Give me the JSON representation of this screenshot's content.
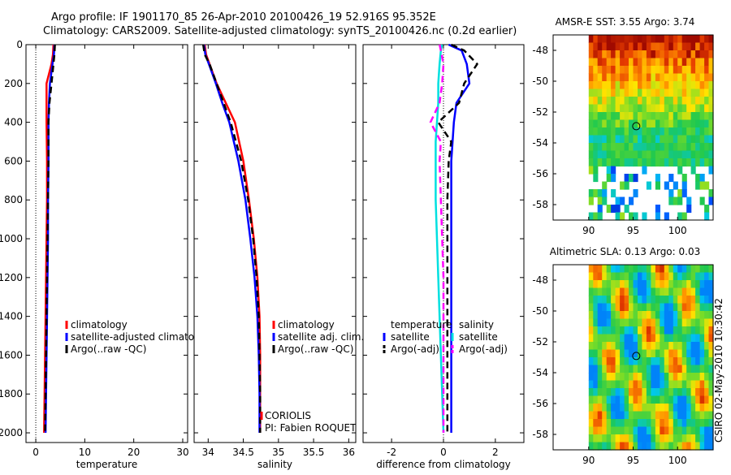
{
  "figure": {
    "title_line1": "Argo profile: IF 1901170_85 26-Apr-2010 20100426_19 52.916S 95.352E",
    "title_line2": "Climatology: CARS2009. Satellite-adjusted climatology: synTS_20100426.nc (0.2d earlier)",
    "side_stamp": "CSIRO 02-May-2010 10:30:42"
  },
  "chart_data": [
    {
      "type": "line",
      "title": "",
      "xlabel": "temperature",
      "ylabel": "",
      "xlim": [
        -2,
        31
      ],
      "ylim": [
        2050,
        0
      ],
      "xticks": [
        0,
        10,
        20,
        30
      ],
      "yticks": [
        0,
        200,
        400,
        600,
        800,
        1000,
        1200,
        1400,
        1600,
        1800,
        2000
      ],
      "legend": [
        "climatology",
        "satellite-adjusted climatology",
        "Argo(..raw -QC)"
      ],
      "series": [
        {
          "name": "climatology",
          "color": "#ff0000",
          "dash": "solid",
          "x": [
            3.6,
            3.5,
            3.2,
            2.2,
            2.2,
            2.2,
            2.3,
            2.3,
            2.2,
            2.1,
            2.0,
            1.9,
            1.8,
            1.7
          ],
          "y": [
            0,
            50,
            100,
            200,
            300,
            400,
            600,
            800,
            1000,
            1200,
            1400,
            1600,
            1800,
            2000
          ]
        },
        {
          "name": "satellite-adjusted climatology",
          "color": "#0000ff",
          "dash": "solid",
          "x": [
            3.8,
            3.7,
            3.4,
            2.9,
            2.7,
            2.6,
            2.6,
            2.5,
            2.5,
            2.4,
            2.3,
            2.2,
            2.1,
            2.0
          ],
          "y": [
            0,
            50,
            100,
            200,
            300,
            400,
            600,
            800,
            1000,
            1200,
            1400,
            1600,
            1800,
            2000
          ]
        },
        {
          "name": "Argo(..raw -QC)",
          "color": "#000000",
          "dash": "dash",
          "x": [
            3.9,
            3.8,
            3.6,
            3.2,
            2.8,
            2.6,
            2.6,
            2.5,
            2.4,
            2.3,
            2.2,
            2.1,
            2.0,
            1.9
          ],
          "y": [
            0,
            50,
            100,
            200,
            300,
            400,
            600,
            800,
            1000,
            1200,
            1400,
            1600,
            1800,
            2000
          ]
        }
      ]
    },
    {
      "type": "line",
      "title": "",
      "xlabel": "salinity",
      "ylabel": "",
      "xlim": [
        33.8,
        36.1
      ],
      "ylim": [
        2050,
        0
      ],
      "xticks": [
        34,
        34.5,
        35,
        35.5,
        36
      ],
      "xtick_labels": [
        "34",
        "34.5",
        "35",
        "35.5",
        "36"
      ],
      "legend": [
        "climatology",
        "satellite adj. clim.",
        "Argo(..raw -QC)"
      ],
      "annotation": [
        "CORIOLIS",
        "PI: Fabien ROQUET"
      ],
      "series": [
        {
          "name": "climatology",
          "color": "#ff0000",
          "dash": "solid",
          "x": [
            33.95,
            33.97,
            34.02,
            34.12,
            34.25,
            34.38,
            34.5,
            34.58,
            34.65,
            34.7,
            34.73,
            34.74,
            34.74,
            34.74
          ],
          "y": [
            0,
            50,
            100,
            200,
            300,
            400,
            600,
            800,
            1000,
            1200,
            1400,
            1600,
            1800,
            2000
          ]
        },
        {
          "name": "satellite adj. clim.",
          "color": "#0000ff",
          "dash": "solid",
          "x": [
            33.94,
            33.96,
            34.01,
            34.11,
            34.2,
            34.3,
            34.43,
            34.53,
            34.6,
            34.66,
            34.7,
            34.72,
            34.73,
            34.73
          ],
          "y": [
            0,
            50,
            100,
            200,
            300,
            400,
            600,
            800,
            1000,
            1200,
            1400,
            1600,
            1800,
            2000
          ]
        },
        {
          "name": "Argo(..raw -QC)",
          "color": "#000000",
          "dash": "dash",
          "x": [
            33.93,
            33.95,
            34.02,
            34.12,
            34.22,
            34.32,
            34.47,
            34.57,
            34.64,
            34.69,
            34.72,
            34.73,
            34.74,
            34.74
          ],
          "y": [
            0,
            50,
            100,
            200,
            300,
            400,
            600,
            800,
            1000,
            1200,
            1400,
            1600,
            1800,
            2000
          ]
        }
      ]
    },
    {
      "type": "line",
      "title": "",
      "xlabel": "difference from climatology",
      "ylabel": "",
      "xlim": [
        -3.1,
        3.1
      ],
      "ylim": [
        2050,
        0
      ],
      "xticks": [
        -2,
        0,
        2
      ],
      "legend_groups": [
        {
          "heading": "temperature",
          "items": [
            {
              "label": "satellite",
              "color": "#0000ff"
            },
            {
              "label": "Argo(-adj)",
              "color": "#000000"
            }
          ]
        },
        {
          "heading": "salinity",
          "items": [
            {
              "label": "satellite",
              "color": "#00e0e0"
            },
            {
              "label": "Argo(-adj)",
              "color": "#ff00ff"
            }
          ]
        }
      ],
      "series": [
        {
          "name": "temperature satellite",
          "color": "#0000ff",
          "dash": "solid",
          "x": [
            0.2,
            0.7,
            0.9,
            1.0,
            0.5,
            0.4,
            0.35,
            0.3,
            0.3,
            0.3,
            0.3,
            0.3,
            0.3,
            0.3,
            0.3
          ],
          "y": [
            0,
            30,
            100,
            200,
            300,
            400,
            500,
            600,
            800,
            1000,
            1200,
            1400,
            1600,
            1800,
            2000
          ]
        },
        {
          "name": "temperature Argo(-adj)",
          "color": "#000000",
          "dash": "dash",
          "x": [
            0.3,
            0.8,
            1.3,
            0.8,
            0.6,
            -0.2,
            0.3,
            0.2,
            0.15,
            0.15,
            0.15,
            0.15,
            0.15,
            0.15,
            0.15
          ],
          "y": [
            0,
            30,
            100,
            200,
            300,
            400,
            500,
            600,
            800,
            1000,
            1200,
            1400,
            1600,
            1800,
            2000
          ]
        },
        {
          "name": "salinity satellite",
          "color": "#00e0e0",
          "dash": "solid",
          "x": [
            -0.05,
            -0.1,
            -0.15,
            -0.2,
            -0.2,
            -0.25,
            -0.3,
            -0.3,
            -0.3,
            -0.25,
            -0.2,
            -0.15,
            -0.1,
            -0.05,
            0.0
          ],
          "y": [
            0,
            30,
            100,
            200,
            300,
            400,
            500,
            600,
            800,
            1000,
            1200,
            1400,
            1600,
            1800,
            2000
          ]
        },
        {
          "name": "salinity Argo(-adj)",
          "color": "#ff00ff",
          "dash": "dash",
          "x": [
            -0.15,
            -0.1,
            0.0,
            -0.05,
            -0.15,
            -0.5,
            -0.1,
            -0.15,
            -0.1,
            -0.05,
            0.0,
            0.0,
            0.0,
            0.0,
            0.0
          ],
          "y": [
            0,
            30,
            100,
            200,
            300,
            400,
            500,
            600,
            800,
            1000,
            1200,
            1400,
            1600,
            1800,
            2000
          ]
        }
      ]
    },
    {
      "type": "heatmap",
      "title": "AMSR-E SST: 3.55 Argo: 3.74",
      "xlim": [
        86,
        104
      ],
      "ylim": [
        -59,
        -47
      ],
      "xticks": [
        90,
        95,
        100
      ],
      "yticks": [
        -48,
        -50,
        -52,
        -54,
        -56,
        -58
      ],
      "marker": {
        "lon": 95.352,
        "lat": -52.916
      },
      "land_mask_lon_max": 90
    },
    {
      "type": "heatmap",
      "title": "Altimetric SLA: 0.13 Argo: 0.03",
      "xlim": [
        86,
        104
      ],
      "ylim": [
        -59,
        -47
      ],
      "xticks": [
        90,
        95,
        100
      ],
      "yticks": [
        -48,
        -50,
        -52,
        -54,
        -56,
        -58
      ],
      "marker": {
        "lon": 95.352,
        "lat": -52.916
      },
      "land_mask_lon_max": 90
    }
  ]
}
